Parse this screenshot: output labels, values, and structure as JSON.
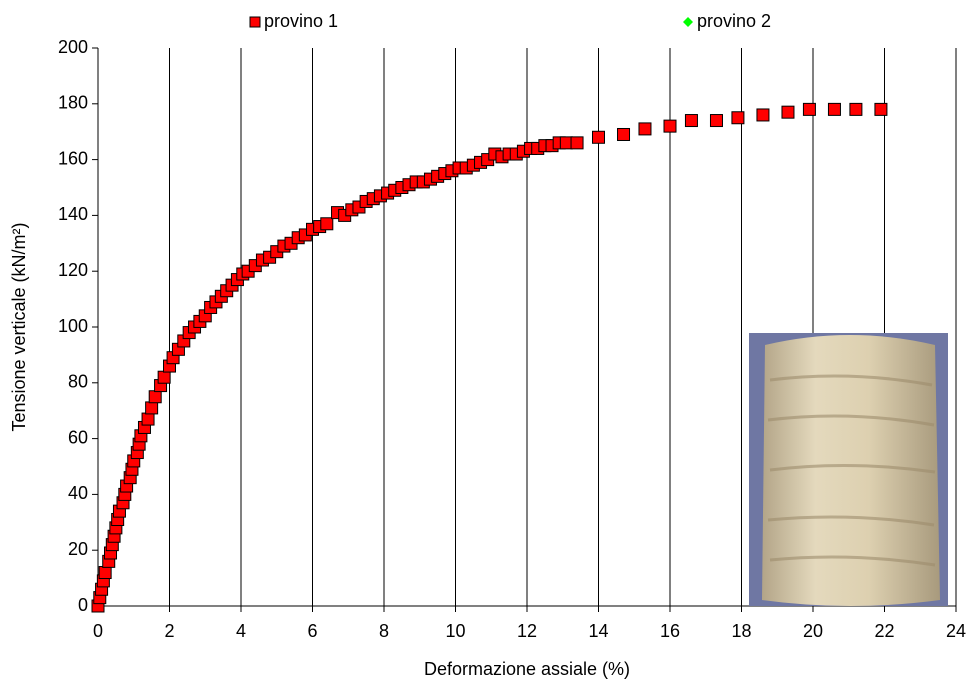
{
  "chart_data": {
    "type": "scatter",
    "x_label": "Deformazione assiale (%)",
    "y_label": "Tensione verticale (kN/m²)",
    "xlim": [
      0,
      24
    ],
    "ylim": [
      0,
      200
    ],
    "xticks": [
      0,
      2,
      4,
      6,
      8,
      10,
      12,
      14,
      16,
      18,
      20,
      22,
      24
    ],
    "yticks": [
      0,
      20,
      40,
      60,
      80,
      100,
      120,
      140,
      160,
      180,
      200
    ],
    "grid": "x",
    "legend_position": "top",
    "series": [
      {
        "name": "provino 1",
        "color": "#ff0000",
        "marker": "square",
        "x": [
          0,
          0.05,
          0.1,
          0.15,
          0.2,
          0.3,
          0.35,
          0.4,
          0.45,
          0.5,
          0.55,
          0.6,
          0.7,
          0.75,
          0.8,
          0.9,
          0.95,
          1.0,
          1.1,
          1.15,
          1.2,
          1.3,
          1.4,
          1.5,
          1.6,
          1.75,
          1.85,
          2.0,
          2.1,
          2.25,
          2.4,
          2.55,
          2.7,
          2.85,
          3.0,
          3.15,
          3.3,
          3.45,
          3.6,
          3.75,
          3.9,
          4.05,
          4.2,
          4.4,
          4.6,
          4.8,
          5.0,
          5.2,
          5.4,
          5.6,
          5.8,
          6.0,
          6.2,
          6.4,
          6.7,
          6.9,
          7.1,
          7.3,
          7.5,
          7.7,
          7.9,
          8.1,
          8.3,
          8.5,
          8.7,
          8.9,
          9.1,
          9.3,
          9.5,
          9.7,
          9.9,
          10.1,
          10.3,
          10.5,
          10.7,
          10.9,
          11.1,
          11.3,
          11.5,
          11.7,
          11.9,
          12.1,
          12.3,
          12.5,
          12.7,
          12.9,
          13.1,
          13.4,
          14.0,
          14.7,
          15.3,
          16.0,
          16.6,
          17.3,
          17.9,
          18.6,
          19.3,
          19.9,
          20.6,
          21.2,
          21.9
        ],
        "values": [
          0,
          3,
          6,
          9,
          12,
          16,
          19,
          22,
          25,
          28,
          31,
          34,
          37,
          40,
          43,
          46,
          49,
          52,
          55,
          58,
          61,
          64,
          67,
          71,
          75,
          79,
          82,
          86,
          89,
          92,
          95,
          98,
          100,
          102,
          104,
          107,
          109,
          111,
          113,
          115,
          117,
          119,
          120,
          122,
          124,
          125,
          127,
          129,
          130,
          132,
          133,
          135,
          136,
          137,
          141,
          140,
          142,
          143,
          145,
          146,
          147,
          148,
          149,
          150,
          151,
          152,
          152,
          153,
          154,
          155,
          156,
          157,
          157,
          158,
          159,
          160,
          162,
          161,
          162,
          162,
          163,
          164,
          164,
          165,
          165,
          166,
          166,
          166,
          168,
          169,
          171,
          172,
          174,
          174,
          175,
          176,
          177,
          178,
          178,
          178,
          178
        ]
      },
      {
        "name": "provino 2",
        "color": "#00ff00",
        "marker": "diamond",
        "x": [],
        "values": []
      }
    ]
  }
}
